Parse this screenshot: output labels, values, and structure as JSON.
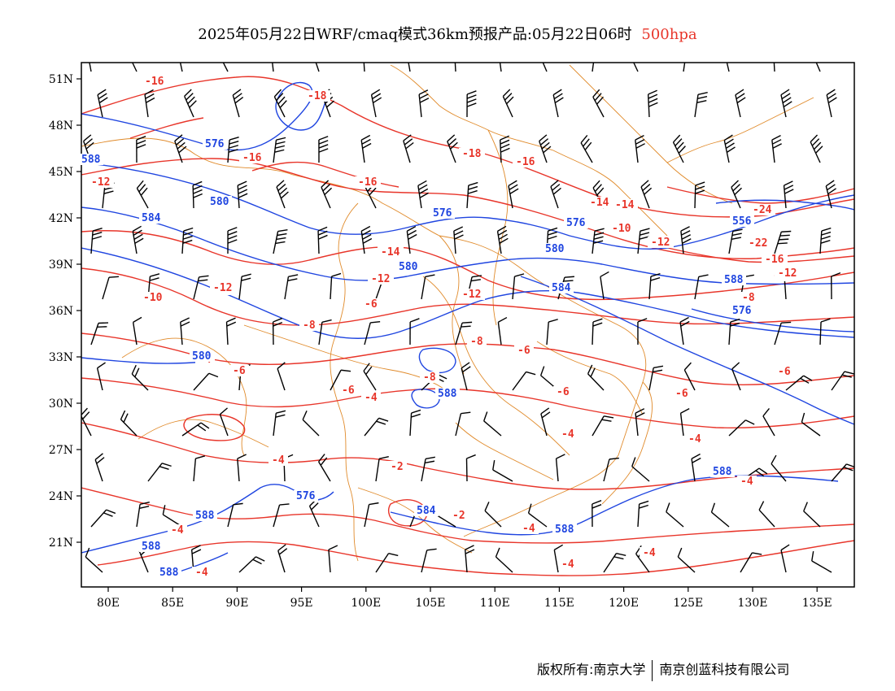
{
  "title": {
    "main": "2025年05月22日WRF/cmaq模式36km预报产品:05月22日06时",
    "level": "500hpa"
  },
  "footer": {
    "copyright": "版权所有:南京大学",
    "company": "南京创蓝科技有限公司"
  },
  "colors": {
    "temperature_contour": "#e8352a",
    "height_contour": "#1f45e0",
    "boundary": "#e08a2a",
    "wind_barb": "#000000"
  },
  "map": {
    "lon_labels": [
      "80E",
      "85E",
      "90E",
      "95E",
      "100E",
      "105E",
      "110E",
      "115E",
      "120E",
      "125E",
      "130E",
      "135E"
    ],
    "lat_labels": [
      "51N",
      "48N",
      "45N",
      "42N",
      "39N",
      "36N",
      "33N",
      "30N",
      "27N",
      "24N",
      "21N"
    ],
    "temperature_labels": [
      "-16",
      "-18",
      "-16",
      "-18",
      "-16",
      "-12",
      "-16",
      "-14",
      "-12",
      "-10",
      "-14",
      "-12",
      "-10",
      "-12",
      "-24",
      "-22",
      "-16",
      "-12",
      "-8",
      "-14",
      "-6",
      "-12",
      "-10",
      "-8",
      "-8",
      "-6",
      "-6",
      "-6",
      "-4",
      "-8",
      "-6",
      "-4",
      "-6",
      "-4",
      "-4",
      "-4",
      "-2",
      "-2",
      "-4",
      "-4",
      "-4",
      "-4",
      "-4",
      "-4",
      "-6",
      "-4",
      "-6",
      "-12"
    ],
    "height_labels": [
      "576",
      "580",
      "584",
      "576",
      "580",
      "576",
      "584",
      "580",
      "588",
      "580",
      "576",
      "556",
      "588",
      "576",
      "584",
      "588",
      "588",
      "588",
      "588",
      "588",
      "588"
    ]
  }
}
